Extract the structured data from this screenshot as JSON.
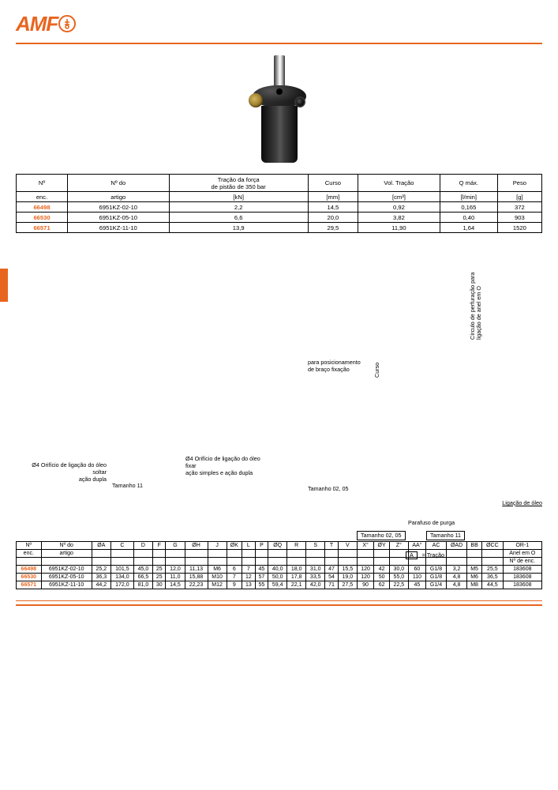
{
  "logo_text": "AMF",
  "colors": {
    "accent": "#e8651f",
    "border": "#000000"
  },
  "product_image_alt": "Grampo de alavanca hidráulico",
  "table1": {
    "headers": [
      {
        "l1": "Nº",
        "l2": "enc."
      },
      {
        "l1": "Nº do",
        "l2": "artigo"
      },
      {
        "l1": "Tração da força",
        "l2": "de pistão de 350 bar",
        "l3": "[kN]"
      },
      {
        "l1": "Curso",
        "l2": "",
        "l3": "[mm]"
      },
      {
        "l1": "Vol. Tração",
        "l2": "",
        "l3": "[cm³]"
      },
      {
        "l1": "Q máx.",
        "l2": "",
        "l3": "[l/min]"
      },
      {
        "l1": "Peso",
        "l2": "",
        "l3": "[g]"
      }
    ],
    "rows": [
      {
        "enc": "66498",
        "art": "6951KZ-02-10",
        "force": "2,2",
        "curso": "14,5",
        "vol": "0,92",
        "q": "0,165",
        "peso": "372"
      },
      {
        "enc": "66530",
        "art": "6951KZ-05-10",
        "force": "6,6",
        "curso": "20,0",
        "vol": "3,82",
        "q": "0,40",
        "peso": "903"
      },
      {
        "enc": "66571",
        "art": "6951KZ-11-10",
        "force": "13,9",
        "curso": "29,5",
        "vol": "11,90",
        "q": "1,64",
        "peso": "1520"
      }
    ]
  },
  "mid_labels": {
    "vlabel1": "Círculo de perfuração para\nligação de anel em O",
    "pos1": "para posicionamento",
    "pos2": "de braço fixação",
    "curso": "Curso",
    "oil1a": "Ø4 Orifício de ligação do óleo",
    "oil1b": "soltar",
    "oil1c": "ação dupla",
    "tam11a": "Tamanho 11",
    "oil2a": "Ø4 Orifício de ligação do óleo",
    "oil2b": "fixar",
    "oil2c": "ação simples e ação dupla",
    "tam0205a": "Tamanho 02, 05",
    "ligacao": "Ligação de óleo",
    "parafuso": "Parafuso de purga",
    "tam0205b": "Tamanho 02, 05",
    "tam11b": "Tamanho 11",
    "tracao_key": "A",
    "tracao_val": "= Tração"
  },
  "table2": {
    "headers_row1": [
      "Nº",
      "Nº do",
      "ØA",
      "C",
      "D",
      "F",
      "G",
      "ØH",
      "J",
      "ØK",
      "L",
      "P",
      "ØQ",
      "R",
      "S",
      "T",
      "V",
      "X°",
      "ØY",
      "Z°",
      "AA°",
      "AC",
      "ØAD",
      "BB",
      "ØCC",
      "OR-1"
    ],
    "headers_row2": [
      "enc.",
      "artigo",
      "",
      "",
      "",
      "",
      "",
      "",
      "",
      "",
      "",
      "",
      "",
      "",
      "",
      "",
      "",
      "",
      "",
      "",
      "",
      "",
      "",
      "",
      "",
      "Anel em O"
    ],
    "headers_row3": [
      "",
      "",
      "",
      "",
      "",
      "",
      "",
      "",
      "",
      "",
      "",
      "",
      "",
      "",
      "",
      "",
      "",
      "",
      "",
      "",
      "",
      "",
      "",
      "",
      "",
      "Nº de enc."
    ],
    "rows": [
      {
        "enc": "66498",
        "cells": [
          "6951KZ-02-10",
          "25,2",
          "101,5",
          "45,0",
          "25",
          "12,0",
          "11,13",
          "M6",
          "6",
          "7",
          "45",
          "40,0",
          "18,0",
          "31,0",
          "47",
          "15,5",
          "120",
          "42",
          "30,0",
          "60",
          "G1/8",
          "3,2",
          "M5",
          "25,5",
          "183608"
        ]
      },
      {
        "enc": "66530",
        "cells": [
          "6951KZ-05-10",
          "36,3",
          "134,0",
          "66,5",
          "25",
          "11,0",
          "15,88",
          "M10",
          "7",
          "12",
          "57",
          "50,0",
          "17,8",
          "33,5",
          "54",
          "19,0",
          "120",
          "50",
          "55,0",
          "110",
          "G1/8",
          "4,8",
          "M6",
          "36,5",
          "183608"
        ]
      },
      {
        "enc": "66571",
        "cells": [
          "6951KZ-11-10",
          "44,2",
          "172,0",
          "81,0",
          "30",
          "14,5",
          "22,23",
          "M12",
          "9",
          "13",
          "55",
          "59,4",
          "22,1",
          "42,0",
          "71",
          "27,5",
          "90",
          "62",
          "22,5",
          "45",
          "G1/4",
          "4,8",
          "M8",
          "44,5",
          "183608"
        ]
      }
    ]
  }
}
